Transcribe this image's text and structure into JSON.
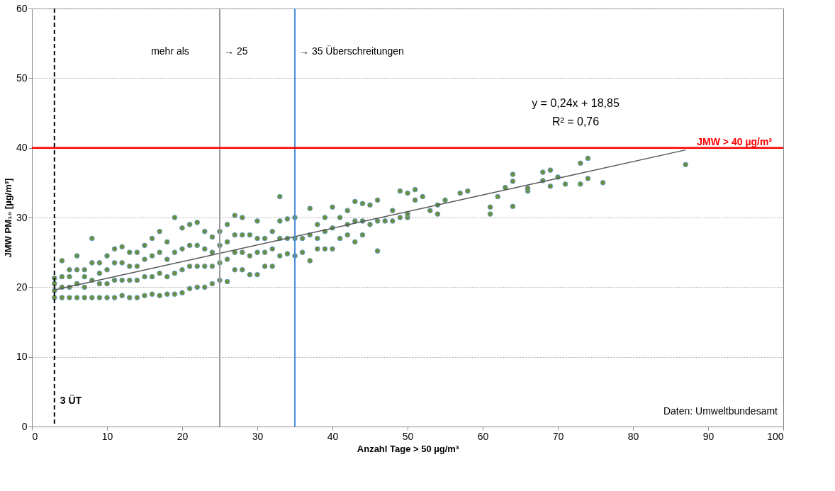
{
  "chart_data": {
    "type": "scatter",
    "xlabel": "Anzahl Tage > 50 µg/m³",
    "ylabel": "JMW PM₁₀ [µg/m³]",
    "xlim": [
      0,
      100
    ],
    "ylim": [
      0,
      60
    ],
    "xticks": [
      0,
      10,
      20,
      30,
      40,
      50,
      60,
      70,
      80,
      90,
      100
    ],
    "yticks": [
      0,
      10,
      20,
      30,
      40,
      50,
      60
    ],
    "grid": "y",
    "series": [
      {
        "marker": "circle",
        "color": "#6b8e3a",
        "x": [
          3,
          3,
          3,
          3,
          4,
          4,
          4,
          4,
          5,
          5,
          5,
          5,
          6,
          6,
          6,
          6,
          7,
          7,
          7,
          7,
          8,
          8,
          8,
          8,
          9,
          9,
          9,
          9,
          10,
          10,
          10,
          10,
          11,
          11,
          11,
          11,
          12,
          12,
          12,
          12,
          13,
          13,
          13,
          13,
          14,
          14,
          14,
          14,
          15,
          15,
          15,
          15,
          16,
          16,
          16,
          16,
          17,
          17,
          17,
          17,
          18,
          18,
          18,
          18,
          19,
          19,
          19,
          19,
          20,
          20,
          20,
          20,
          21,
          21,
          21,
          21,
          22,
          22,
          22,
          22,
          23,
          23,
          23,
          23,
          24,
          24,
          24,
          24,
          25,
          25,
          25,
          25,
          26,
          26,
          26,
          26,
          27,
          27,
          27,
          27,
          28,
          28,
          28,
          28,
          29,
          29,
          29,
          30,
          30,
          30,
          30,
          31,
          31,
          31,
          32,
          32,
          32,
          33,
          33,
          33,
          33,
          34,
          34,
          34,
          35,
          35,
          35,
          36,
          36,
          37,
          37,
          37,
          38,
          38,
          38,
          39,
          39,
          39,
          40,
          40,
          40,
          41,
          41,
          42,
          42,
          42,
          43,
          43,
          43,
          44,
          44,
          44,
          45,
          45,
          46,
          46,
          46,
          47,
          48,
          48,
          49,
          49,
          50,
          50,
          50,
          51,
          51,
          52,
          53,
          54,
          54,
          55,
          57,
          58,
          61,
          61,
          62,
          63,
          64,
          64,
          64,
          66,
          66,
          68,
          68,
          69,
          69,
          70,
          71,
          73,
          73,
          74,
          74,
          76,
          87
        ],
        "values": [
          18.5,
          19.5,
          20.5,
          21.3,
          18.5,
          20,
          21.5,
          23.8,
          18.5,
          20,
          21.5,
          22.5,
          18.5,
          20.5,
          22.5,
          24.5,
          18.5,
          20,
          21.5,
          22.5,
          18.5,
          21,
          23.5,
          27,
          18.5,
          20.5,
          22,
          23.5,
          18.5,
          20.5,
          22.5,
          24.5,
          18.5,
          21,
          23.5,
          25.5,
          18.8,
          21,
          23.5,
          25.8,
          18.5,
          21,
          23,
          25,
          18.5,
          21,
          23,
          25,
          18.8,
          21.5,
          24,
          26,
          19,
          21.5,
          24.5,
          27,
          18.8,
          22,
          25,
          28,
          19,
          21.5,
          24,
          26.5,
          19,
          22,
          25,
          30,
          19.2,
          22.5,
          25.5,
          28.5,
          19.8,
          23,
          26,
          29,
          20,
          23,
          26,
          29.3,
          20,
          23,
          25.5,
          28,
          20.5,
          23,
          25,
          27.2,
          21,
          23.5,
          26,
          28,
          20.8,
          24,
          26.5,
          29,
          22.5,
          25,
          27.5,
          30.3,
          22.5,
          25,
          27.5,
          30,
          21.8,
          24.5,
          27.5,
          21.8,
          25,
          27,
          29.5,
          23,
          25,
          27,
          23,
          25.5,
          28,
          24.5,
          27,
          29.5,
          33,
          24.8,
          27,
          29.8,
          24.5,
          27,
          30,
          25,
          27,
          23.8,
          27.5,
          31.3,
          25.5,
          27,
          29,
          25.5,
          28,
          30,
          25.5,
          28.5,
          31.5,
          27,
          30,
          27.5,
          29,
          31,
          26.5,
          29.5,
          32.3,
          27.5,
          29.5,
          32,
          29,
          31.8,
          25.2,
          29.5,
          32.5,
          29.5,
          29.5,
          31,
          30,
          33.8,
          30,
          30.5,
          33.5,
          32.5,
          34,
          33,
          31,
          30.5,
          31.8,
          32.5,
          33.5,
          33.8,
          30.5,
          31.5,
          33,
          34.3,
          31.6,
          35.2,
          36.2,
          33.8,
          34.2,
          35.3,
          36.5,
          34.5,
          36.8,
          35.8,
          34.8,
          34.8,
          37.8,
          35.6,
          38.5,
          35,
          37.6
        ]
      },
      {
        "type": "line",
        "color": "#555555",
        "x": [
          3,
          87
        ],
        "values": [
          19.6,
          39.7
        ]
      }
    ],
    "ref_lines": [
      {
        "axis": "x",
        "value": 3,
        "label": "3 ÜT",
        "color": "#000000",
        "line_style": "dashed"
      },
      {
        "axis": "x",
        "value": 25,
        "label": "→ 25",
        "color": "#999999"
      },
      {
        "axis": "x",
        "value": 35,
        "label": "→ 35 Überschreitungen",
        "color": "#4a90d9"
      },
      {
        "axis": "y",
        "value": 40,
        "label": "JMW > 40 µg/m³",
        "color": "#ff0000"
      }
    ],
    "annotations": [
      "mehr als",
      "y = 0,24x + 18,85",
      "R² = 0,76",
      "Daten: Umweltbundesamt"
    ]
  }
}
